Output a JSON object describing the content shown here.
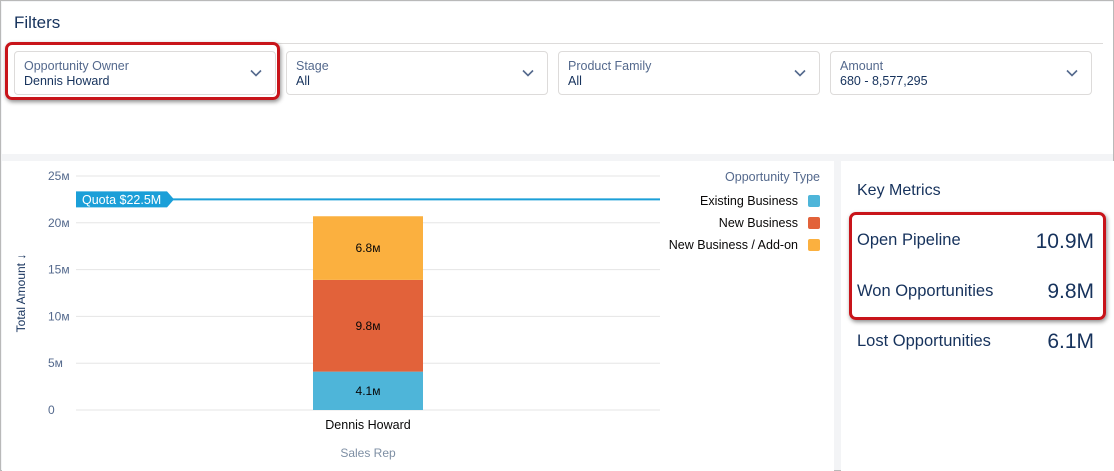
{
  "filters": {
    "title": "Filters",
    "items": [
      {
        "label": "Opportunity Owner",
        "value": "Dennis Howard"
      },
      {
        "label": "Stage",
        "value": "All"
      },
      {
        "label": "Product Family",
        "value": "All"
      },
      {
        "label": "Amount",
        "value": "680 - 8,577,295"
      }
    ]
  },
  "chart_data": {
    "type": "bar",
    "stacked": true,
    "categories": [
      "Dennis Howard"
    ],
    "series": [
      {
        "name": "Existing Business",
        "values": [
          4.1
        ],
        "color": "#4eb5d9",
        "label": "4.1м"
      },
      {
        "name": "New Business",
        "values": [
          9.8
        ],
        "color": "#e2623a",
        "label": "9.8м"
      },
      {
        "name": "New Business / Add-on",
        "values": [
          6.8
        ],
        "color": "#fbb03f",
        "label": "6.8м"
      }
    ],
    "xlabel": "Sales Rep",
    "ylabel": "Total Amount ↓",
    "ylim": [
      0,
      25
    ],
    "yticks": [
      0,
      5,
      10,
      15,
      20,
      25
    ],
    "ytick_labels": [
      "0",
      "5м",
      "10м",
      "15м",
      "20м",
      "25м"
    ],
    "legend_title": "Opportunity Type",
    "legend_position": "top-right",
    "grid": true,
    "reference_line": {
      "label": "Quota $22.5M",
      "value": 22.5,
      "color": "#1b9fd8"
    }
  },
  "metrics": {
    "title": "Key Metrics",
    "items": [
      {
        "label": "Open Pipeline",
        "value": "10.9M"
      },
      {
        "label": "Won Opportunities",
        "value": "9.8M"
      },
      {
        "label": "Lost Opportunities",
        "value": "6.1M"
      }
    ]
  }
}
